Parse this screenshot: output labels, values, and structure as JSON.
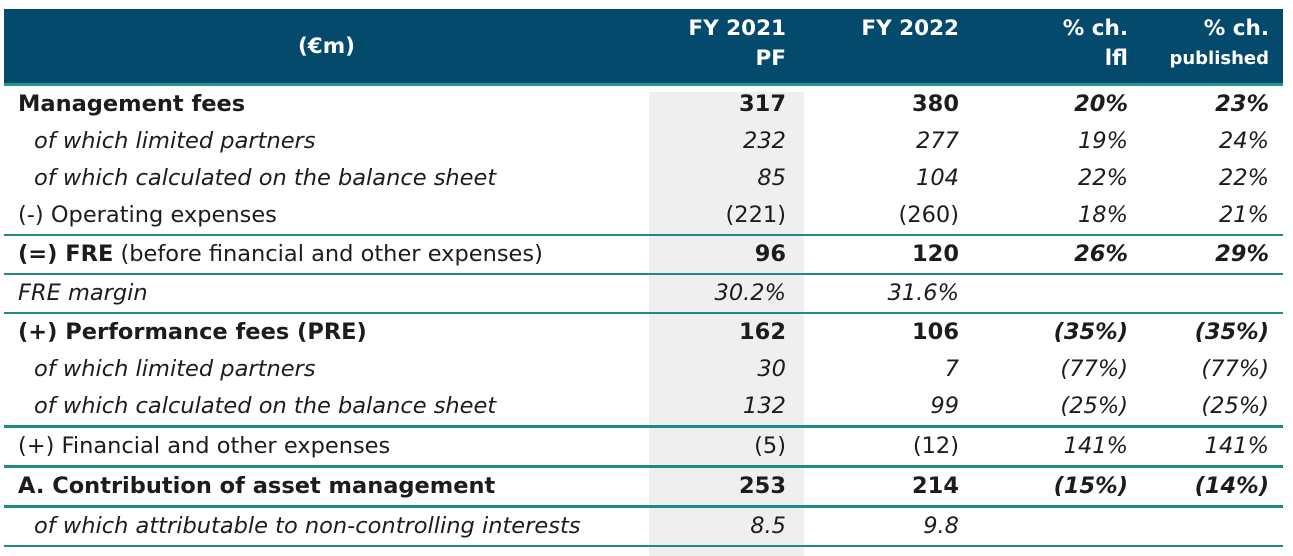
{
  "header": {
    "label": "(€m)",
    "col_2021": [
      "FY 2021",
      "PF"
    ],
    "col_2022": "FY 2022",
    "col_lfl": [
      "% ch.",
      "lfl"
    ],
    "col_pub": [
      "% ch.",
      "published"
    ]
  },
  "rows": [
    {
      "label": "Management fees",
      "v21": "317",
      "v22": "380",
      "lfl": "20%",
      "pub": "23%"
    },
    {
      "label": "of which limited partners",
      "v21": "232",
      "v22": "277",
      "lfl": "19%",
      "pub": "24%"
    },
    {
      "label": "of which calculated on the balance sheet",
      "v21": "85",
      "v22": "104",
      "lfl": "22%",
      "pub": "22%"
    },
    {
      "label": "(-) Operating expenses",
      "v21": "(221)",
      "v22": "(260)",
      "lfl": "18%",
      "pub": "21%"
    },
    {
      "label_bold": "(=) FRE",
      "label_rest": " (before financial and other expenses)",
      "v21": "96",
      "v22": "120",
      "lfl": "26%",
      "pub": "29%"
    },
    {
      "label": "FRE margin",
      "v21": "30.2%",
      "v22": "31.6%",
      "lfl": "",
      "pub": ""
    },
    {
      "label": "(+) Performance fees (PRE)",
      "v21": "162",
      "v22": "106",
      "lfl": "(35%)",
      "pub": "(35%)"
    },
    {
      "label": "of which limited partners",
      "v21": "30",
      "v22": "7",
      "lfl": "(77%)",
      "pub": "(77%)"
    },
    {
      "label": "of which calculated on the balance sheet",
      "v21": "132",
      "v22": "99",
      "lfl": "(25%)",
      "pub": "(25%)"
    },
    {
      "label": "(+) Financial and other expenses",
      "v21": "(5)",
      "v22": "(12)",
      "lfl": "141%",
      "pub": "141%"
    },
    {
      "label": "A. Contribution of asset management",
      "v21": "253",
      "v22": "214",
      "lfl": "(15%)",
      "pub": "(14%)"
    },
    {
      "label": "of which attributable to non-controlling interests",
      "v21": "8.5",
      "v22": "9.8",
      "lfl": "",
      "pub": ""
    }
  ],
  "colors": {
    "header_bg": "#044a6c",
    "rule": "#1f8a80",
    "shade": "#efefef"
  }
}
